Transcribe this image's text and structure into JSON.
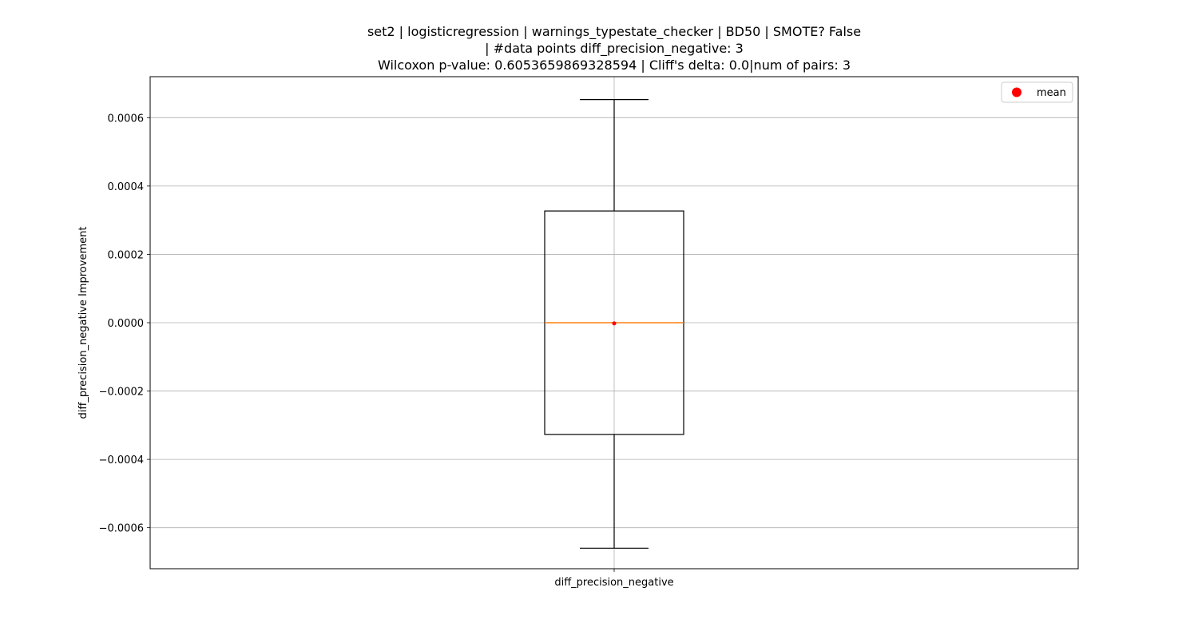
{
  "chart_data": {
    "type": "box",
    "title_lines": [
      "set2 | logisticregression | warnings_typestate_checker | BD50 | SMOTE? False",
      "| #data points diff_precision_negative: 3",
      "Wilcoxon p-value: 0.6053659869328594 | Cliff's delta: 0.0|num of pairs: 3"
    ],
    "xlabel": "",
    "ylabel": "diff_precision_negative Improvement",
    "ylim": [
      -0.00072,
      0.00072
    ],
    "yticks": [
      -0.0006,
      -0.0004,
      -0.0002,
      0.0,
      0.0002,
      0.0004,
      0.0006
    ],
    "ytick_labels": [
      "−0.0006",
      "−0.0004",
      "−0.0002",
      "0.0000",
      "0.0002",
      "0.0004",
      "0.0006"
    ],
    "grid": true,
    "legend": {
      "position": "top-right",
      "entries": [
        {
          "label": "mean",
          "color": "#ff0000",
          "marker": "circle"
        }
      ]
    },
    "categories": [
      "diff_precision_negative"
    ],
    "boxes": [
      {
        "category": "diff_precision_negative",
        "whisker_low": -0.00066,
        "q1": -0.000327,
        "median": 0.0,
        "q3": 0.000327,
        "whisker_high": 0.000653,
        "mean": -2e-06
      }
    ],
    "colors": {
      "box": "#000000",
      "median": "#ff7f0e",
      "mean": "#ff0000",
      "grid": "#b0b0b0"
    }
  }
}
